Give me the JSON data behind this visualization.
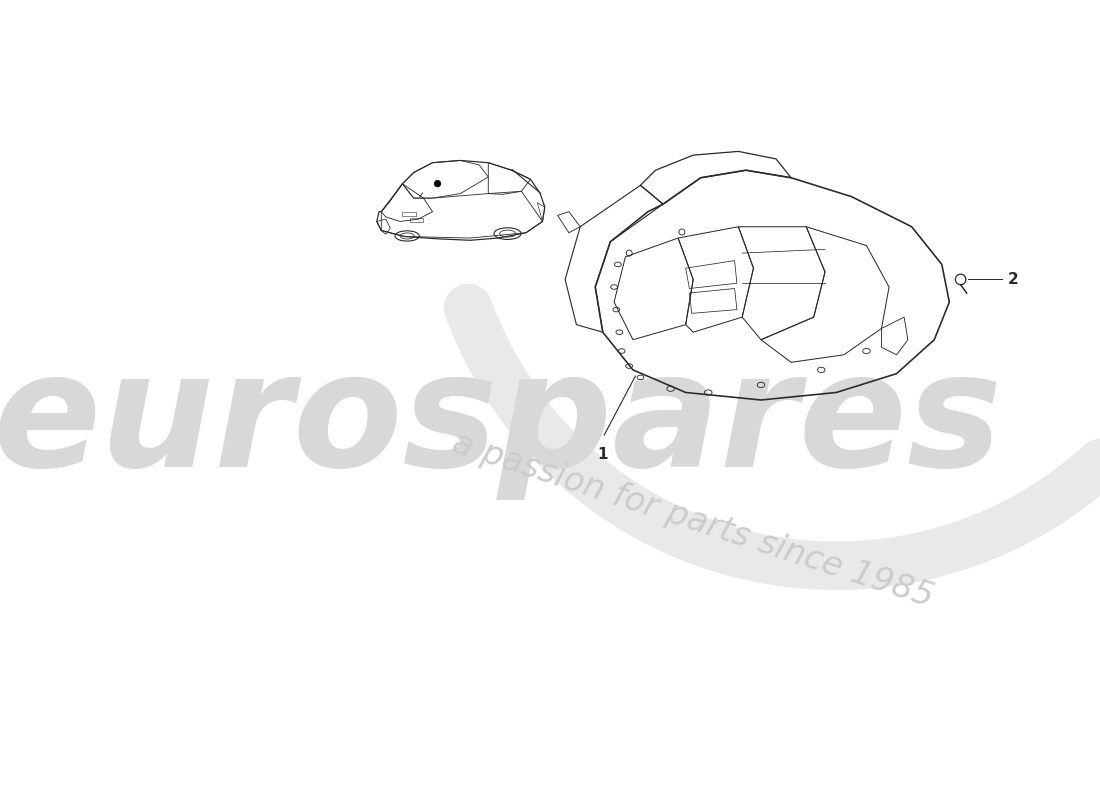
{
  "background_color": "#ffffff",
  "line_color": "#2a2a2a",
  "watermark_euro_color": "#d8d8d8",
  "watermark_passion_color": "#cccccc",
  "part_label_1": "1",
  "part_label_2": "2",
  "figsize": [
    11.0,
    8.0
  ],
  "dpi": 100
}
